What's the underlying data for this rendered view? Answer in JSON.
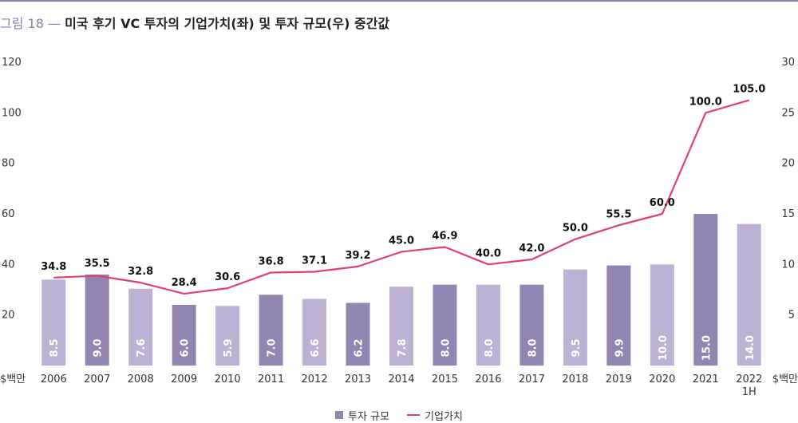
{
  "title": {
    "figure": "그림 18",
    "separator": "—",
    "main": "미국 후기 VC 투자의 기업가치(좌) 및 투자 규모(우) 중간값"
  },
  "colors": {
    "rule": "#8a7db0",
    "bar_dark": "#9385b2",
    "bar_light": "#bdb2d3",
    "line": "#e0416f"
  },
  "chart_data": {
    "type": "bar+line",
    "title": "미국 후기 VC 투자의 기업가치(좌) 및 투자 규모(우) 중간값",
    "categories": [
      "2006",
      "2007",
      "2008",
      "2009",
      "2010",
      "2011",
      "2012",
      "2013",
      "2014",
      "2015",
      "2016",
      "2017",
      "2018",
      "2019",
      "2020",
      "2021",
      "2022 1H"
    ],
    "y_left": {
      "unit": "$백만",
      "ticks": [
        20,
        40,
        60,
        80,
        100,
        120
      ],
      "ylim": [
        0,
        120
      ]
    },
    "y_right": {
      "unit": "$백만",
      "ticks": [
        5,
        10,
        15,
        20,
        25,
        30
      ],
      "ylim": [
        0,
        30
      ]
    },
    "series": [
      {
        "name": "투자 규모",
        "type": "bar",
        "axis": "right",
        "values": [
          8.5,
          9.0,
          7.6,
          6.0,
          5.9,
          7.0,
          6.6,
          6.2,
          7.8,
          8.0,
          8.0,
          8.0,
          9.5,
          9.9,
          10.0,
          15.0,
          14.0
        ],
        "shade": [
          "light",
          "dark",
          "light",
          "dark",
          "light",
          "dark",
          "light",
          "dark",
          "light",
          "dark",
          "light",
          "dark",
          "light",
          "dark",
          "light",
          "dark",
          "light"
        ]
      },
      {
        "name": "기업가치",
        "type": "line",
        "axis": "left",
        "values": [
          34.8,
          35.5,
          32.8,
          28.4,
          30.6,
          36.8,
          37.1,
          39.2,
          45.0,
          46.9,
          40.0,
          42.0,
          50.0,
          55.5,
          60.0,
          100.0,
          105.0
        ]
      }
    ],
    "legend": "bottom-center",
    "grid": false
  }
}
